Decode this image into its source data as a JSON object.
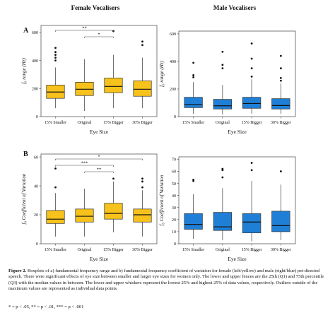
{
  "figure": {
    "column_titles": [
      "Female Vocalisers",
      "Male Vocalisers"
    ],
    "row_labels": [
      "A",
      "B"
    ],
    "caption_label": "Figure 2.",
    "caption_text": "Boxplots of a) fundamental frequency range and b) fundamental frequency coefficient of variation for female (left/yellow) and male (right/blue) pet-directed speech. There were significant effects of eye size between smaller and larger eye sizes for women only. The lower and upper fences are the 25th (Q1) and 75th percentile (Q3) with the median values in between. The lower and upper whiskers represent the lowest 25% and highest 25% of data values, respectively. Outliers outside of the maximum values are represented as individual data points.",
    "caption_sig": "* = p < .05, ** = p < .01, *** = p < .001"
  },
  "colors": {
    "female": "#f7c21b",
    "male": "#1f7fd6",
    "outline": "#333333"
  },
  "chart_data": [
    {
      "id": "A-female",
      "type": "box",
      "panel": "A",
      "group": "Female Vocalisers",
      "xlabel": "Eye Size",
      "ylabel": "f₀ range (Hz)",
      "ylim": [
        0,
        650
      ],
      "yticks": [
        0,
        200,
        400,
        600
      ],
      "categories": [
        "15% Smaller",
        "Original",
        "15% Bigger",
        "30% Bigger"
      ],
      "boxes": [
        {
          "min": 60,
          "q1": 130,
          "median": 175,
          "q3": 225,
          "max": 350,
          "outliers": [
            400,
            420,
            440,
            460,
            490
          ]
        },
        {
          "min": 40,
          "q1": 150,
          "median": 195,
          "q3": 245,
          "max": 410,
          "outliers": []
        },
        {
          "min": 60,
          "q1": 170,
          "median": 215,
          "q3": 275,
          "max": 440,
          "outliers": [
            610
          ]
        },
        {
          "min": 60,
          "q1": 145,
          "median": 195,
          "q3": 255,
          "max": 420,
          "outliers": [
            510,
            535
          ]
        }
      ],
      "significance": [
        {
          "from": "15% Smaller",
          "to": "15% Bigger",
          "label": "**"
        },
        {
          "from": "Original",
          "to": "15% Bigger",
          "label": "*"
        }
      ]
    },
    {
      "id": "A-male",
      "type": "box",
      "panel": "A",
      "group": "Male Vocalisers",
      "xlabel": "Eye Size",
      "ylabel": "f₀ range (Hz)",
      "ylim": [
        0,
        620
      ],
      "yticks": [
        0,
        200,
        400,
        600
      ],
      "categories": [
        "15% Smaller",
        "Original",
        "15% Bigger",
        "30% Bigger"
      ],
      "boxes": [
        {
          "min": 20,
          "q1": 65,
          "median": 88,
          "q3": 140,
          "max": 250,
          "outliers": [
            285,
            300,
            390
          ]
        },
        {
          "min": 15,
          "q1": 55,
          "median": 78,
          "q3": 125,
          "max": 230,
          "outliers": [
            350,
            375,
            470
          ]
        },
        {
          "min": 20,
          "q1": 60,
          "median": 95,
          "q3": 140,
          "max": 270,
          "outliers": [
            290,
            350,
            420,
            530
          ]
        },
        {
          "min": 20,
          "q1": 55,
          "median": 80,
          "q3": 130,
          "max": 240,
          "outliers": [
            260,
            280,
            350,
            440
          ]
        }
      ],
      "significance": []
    },
    {
      "id": "B-female",
      "type": "box",
      "panel": "B",
      "group": "Female Vocalisers",
      "xlabel": "Eye Size",
      "ylabel": "f₀ Coefficient of Variation",
      "ylim": [
        0,
        62
      ],
      "yticks": [
        0,
        20,
        40,
        60
      ],
      "categories": [
        "15% Smaller",
        "Original",
        "15% Bigger",
        "30% Bigger"
      ],
      "boxes": [
        {
          "min": 5,
          "q1": 14,
          "median": 17,
          "q3": 23,
          "max": 35,
          "outliers": [
            39,
            52
          ]
        },
        {
          "min": 5,
          "q1": 15,
          "median": 19,
          "q3": 24,
          "max": 38,
          "outliers": []
        },
        {
          "min": 8,
          "q1": 17,
          "median": 21,
          "q3": 28,
          "max": 43,
          "outliers": [
            45
          ]
        },
        {
          "min": 5,
          "q1": 15,
          "median": 20,
          "q3": 24,
          "max": 37,
          "outliers": [
            39,
            43,
            45
          ]
        }
      ],
      "significance": [
        {
          "from": "15% Smaller",
          "to": "30% Bigger",
          "label": "*"
        },
        {
          "from": "15% Smaller",
          "to": "15% Bigger",
          "label": "***"
        },
        {
          "from": "Original",
          "to": "15% Bigger",
          "label": "**"
        }
      ]
    },
    {
      "id": "B-male",
      "type": "box",
      "panel": "B",
      "group": "Male Vocalisers",
      "xlabel": "Eye Size",
      "ylabel": "f₀ Coefficient of Variation",
      "ylim": [
        0,
        72
      ],
      "yticks": [
        0,
        10,
        20,
        30,
        40,
        50,
        60,
        70
      ],
      "categories": [
        "15% Smaller",
        "Original",
        "15% Bigger",
        "30% Bigger"
      ],
      "boxes": [
        {
          "min": 4,
          "q1": 12,
          "median": 16,
          "q3": 25,
          "max": 41,
          "outliers": [
            52,
            53
          ]
        },
        {
          "min": 3,
          "q1": 11,
          "median": 14,
          "q3": 26,
          "max": 46,
          "outliers": [
            55,
            61,
            62
          ]
        },
        {
          "min": 2,
          "q1": 9,
          "median": 18,
          "q3": 25,
          "max": 52,
          "outliers": [
            61,
            67
          ]
        },
        {
          "min": 3,
          "q1": 10,
          "median": 15,
          "q3": 27,
          "max": 49,
          "outliers": [
            60
          ]
        }
      ],
      "significance": []
    }
  ]
}
